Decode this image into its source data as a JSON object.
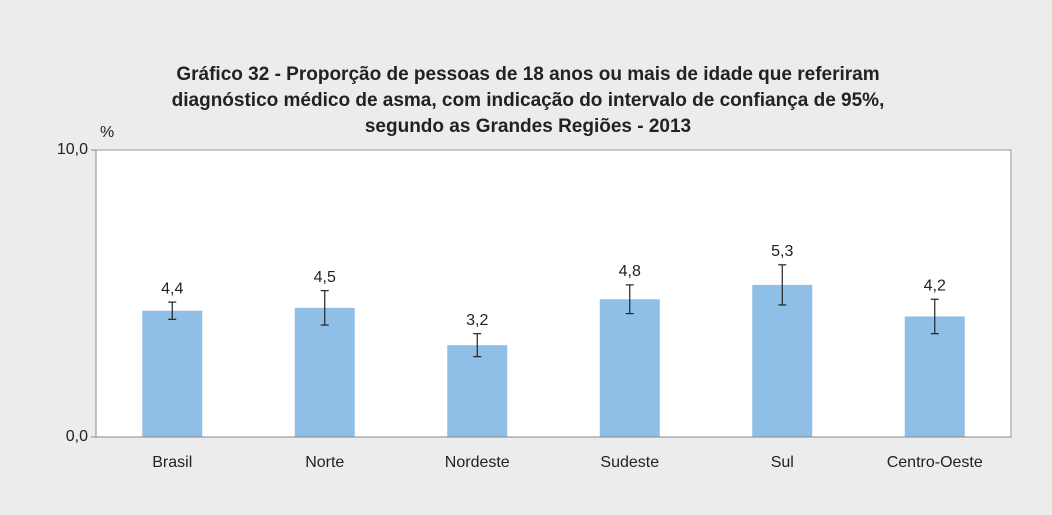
{
  "chart_data": {
    "type": "bar",
    "title": [
      "Gráfico 32 - Proporção de pessoas de 18 anos ou mais de idade que referiram",
      "diagnóstico médico de asma, com indicação do intervalo de confiança de 95%,",
      "segundo as Grandes Regiões - 2013"
    ],
    "y_label": "%",
    "categories": [
      "Brasil",
      "Norte",
      "Nordeste",
      "Sudeste",
      "Sul",
      "Centro-Oeste"
    ],
    "values": [
      4.4,
      4.5,
      3.2,
      4.8,
      5.3,
      4.2
    ],
    "value_labels": [
      "4,4",
      "4,5",
      "3,2",
      "4,8",
      "5,3",
      "4,2"
    ],
    "errors": [
      0.3,
      0.6,
      0.4,
      0.5,
      0.7,
      0.6
    ],
    "color": "#8fbfe6",
    "ylim": [
      0,
      10
    ],
    "yticks": [
      {
        "value": 0,
        "label": "0,0"
      },
      {
        "value": 10,
        "label": "10,0"
      }
    ]
  }
}
